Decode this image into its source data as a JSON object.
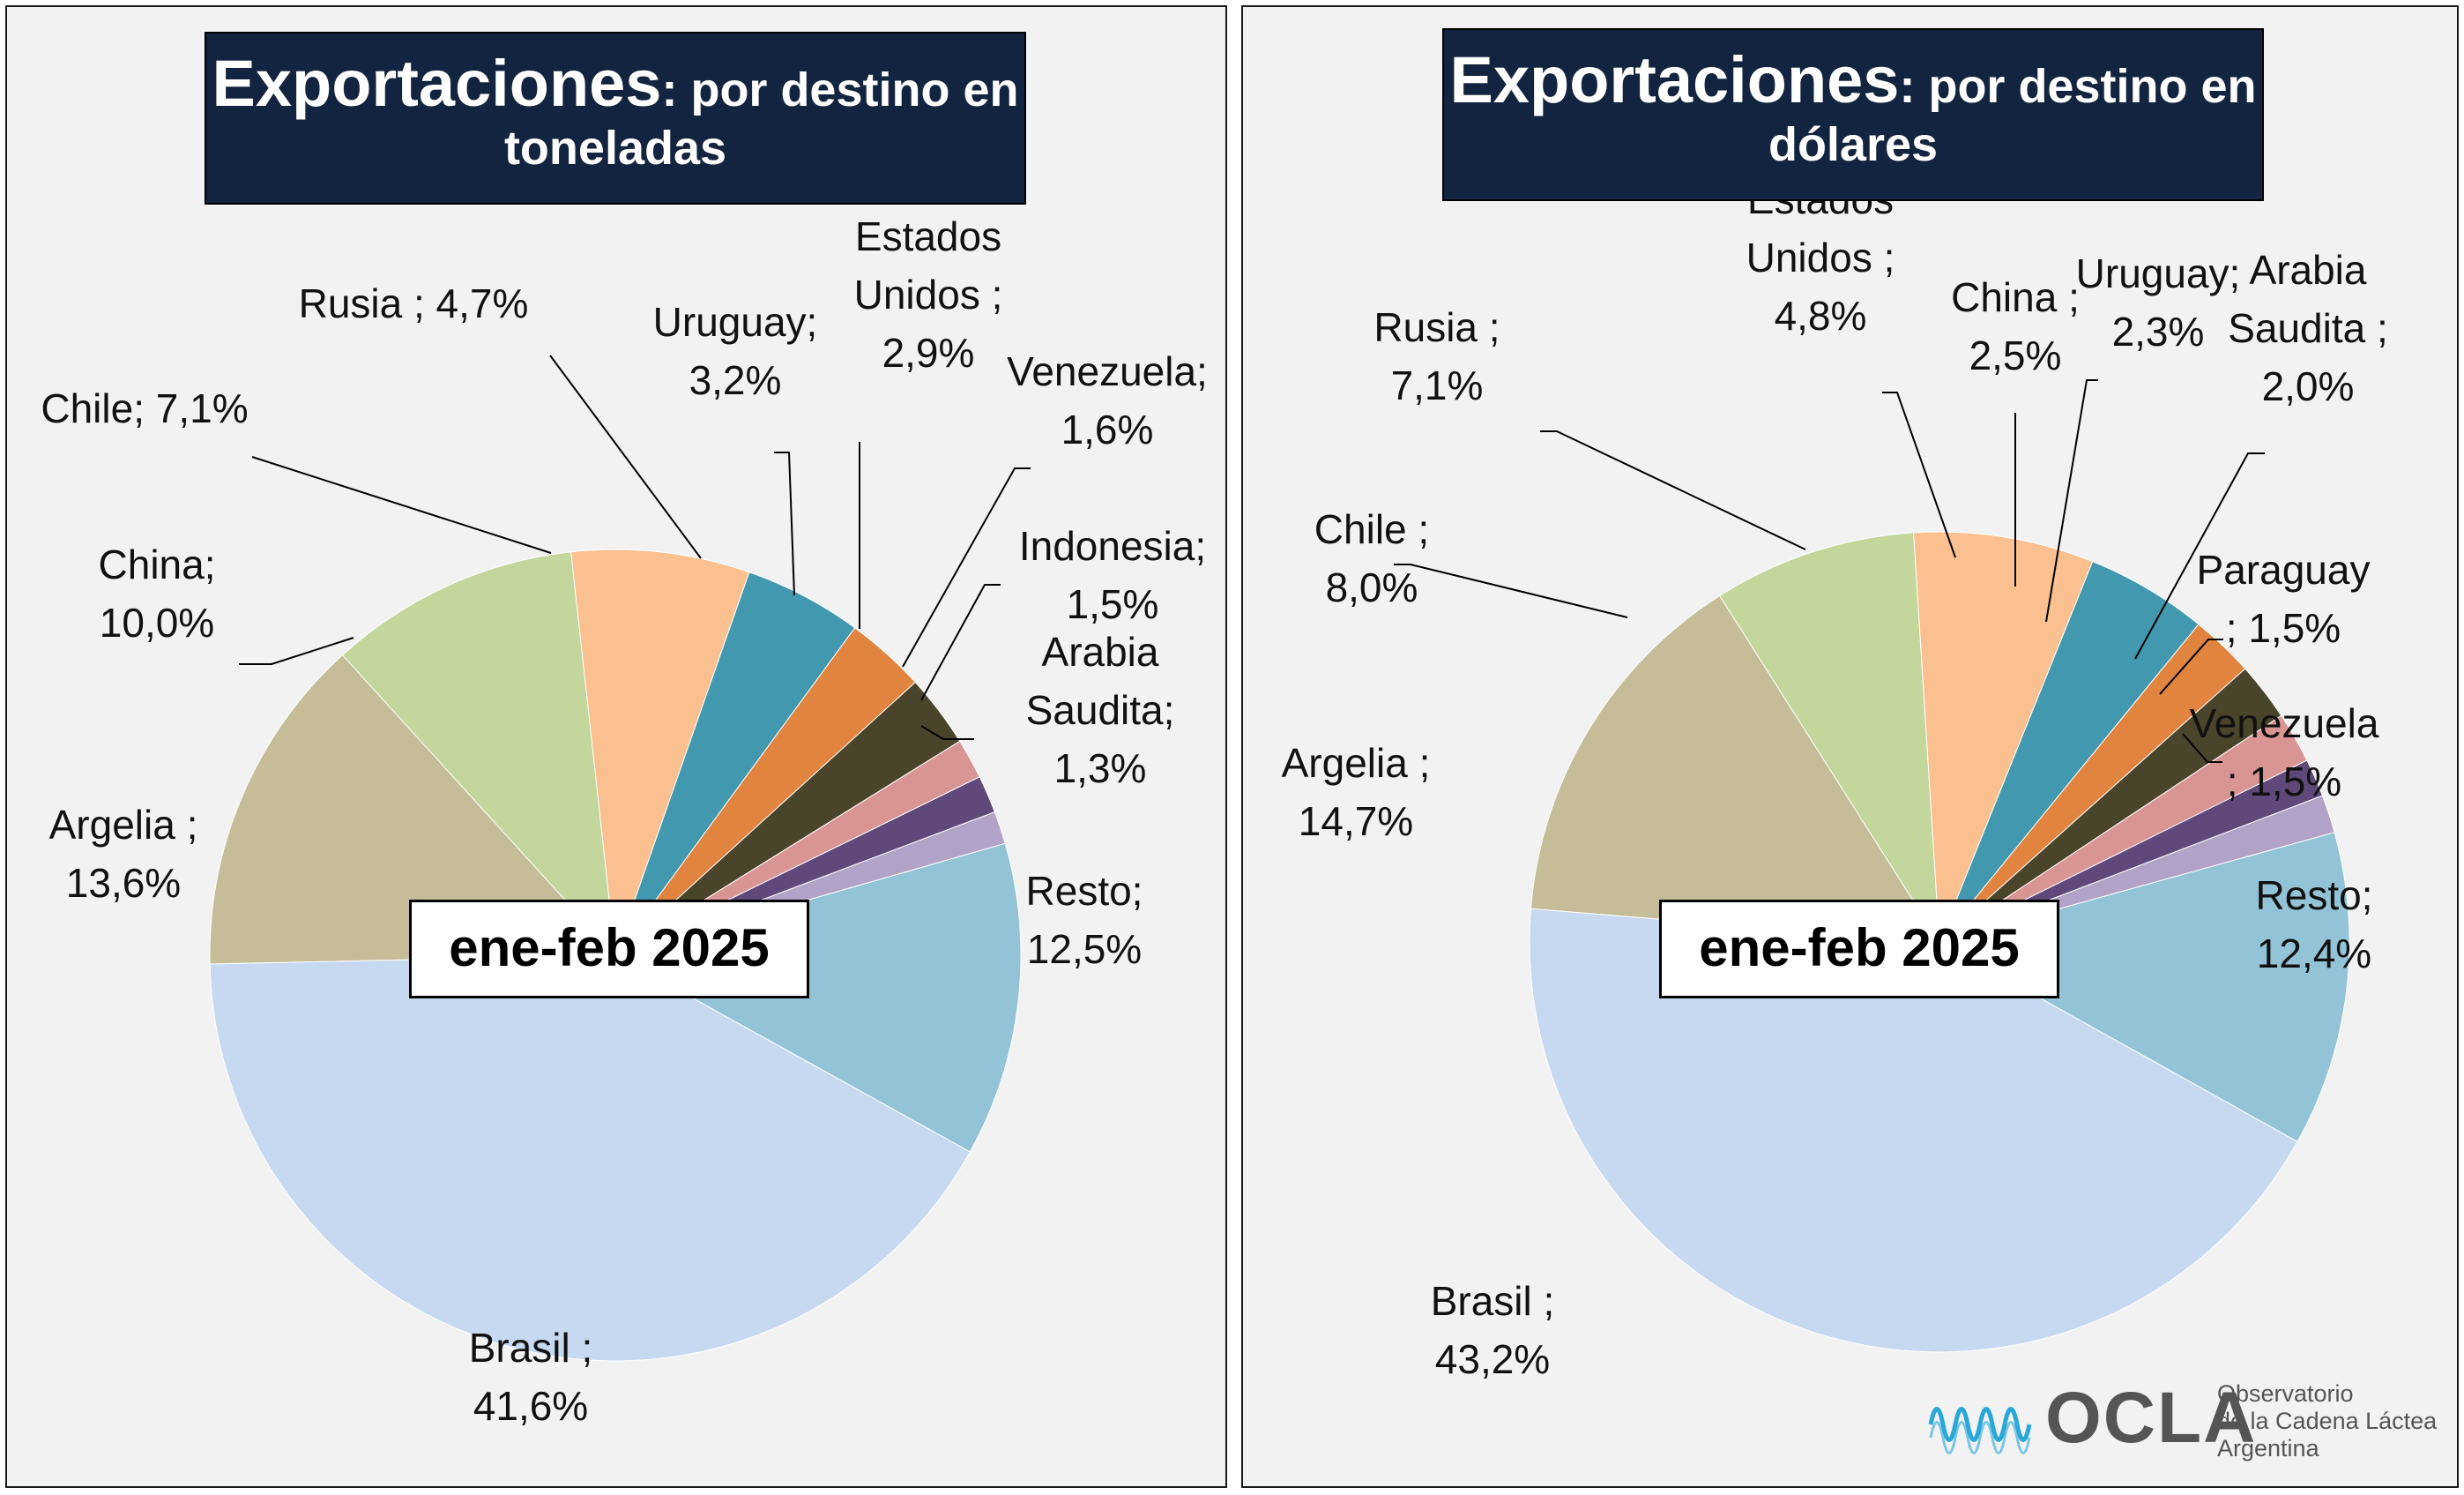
{
  "charts": [
    {
      "title_main": "Exportaciones",
      "title_sub_line1": ": por destino en",
      "title_sub_line2": "toneladas",
      "period": "ene-feb 2025"
    },
    {
      "title_main": "Exportaciones",
      "title_sub_line1": ": por destino en",
      "title_sub_line2": "dólares",
      "period": "ene-feb 2025"
    }
  ],
  "logo": {
    "name": "OCLA",
    "line1": "Observatorio",
    "line2": "de la Cadena Láctea",
    "line3": "Argentina"
  },
  "chart_data": [
    {
      "type": "pie",
      "title": "Exportaciones: por destino en toneladas",
      "slices": [
        {
          "name": "Resto",
          "label_lines": [
            "Resto;",
            "12,5%"
          ],
          "value": 12.5,
          "color": "#93c3d6"
        },
        {
          "name": "Brasil",
          "label_lines": [
            "Brasil ;",
            "41,6%"
          ],
          "value": 41.6,
          "color": "#c6d9f1"
        },
        {
          "name": "Argelia",
          "label_lines": [
            "Argelia ;",
            "13,6%"
          ],
          "value": 13.6,
          "color": "#c4bd97"
        },
        {
          "name": "China",
          "label_lines": [
            "China;",
            "10,0%"
          ],
          "value": 10.0,
          "color": "#c3d69b"
        },
        {
          "name": "Chile",
          "label_lines": [
            "Chile; 7,1%"
          ],
          "value": 7.1,
          "color": "#fac090"
        },
        {
          "name": "Rusia",
          "label_lines": [
            "Rusia ; 4,7%"
          ],
          "value": 4.7,
          "color": "#4198af"
        },
        {
          "name": "Uruguay",
          "label_lines": [
            "Uruguay;",
            "3,2%"
          ],
          "value": 3.2,
          "color": "#e0843f"
        },
        {
          "name": "Estados Unidos",
          "label_lines": [
            "Estados",
            "Unidos ;",
            "2,9%"
          ],
          "value": 2.9,
          "color": "#4a452a"
        },
        {
          "name": "Venezuela",
          "label_lines": [
            "Venezuela;",
            "1,6%"
          ],
          "value": 1.6,
          "color": "#d99594"
        },
        {
          "name": "Indonesia",
          "label_lines": [
            "Indonesia;",
            "1,5%"
          ],
          "value": 1.5,
          "color": "#5f497a"
        },
        {
          "name": "Arabia Saudita",
          "label_lines": [
            "Arabia",
            "Saudita;",
            "1,3%"
          ],
          "value": 1.3,
          "color": "#b2a2c7"
        }
      ]
    },
    {
      "type": "pie",
      "title": "Exportaciones: por destino en dólares",
      "slices": [
        {
          "name": "Resto",
          "label_lines": [
            "Resto;",
            "12,4%"
          ],
          "value": 12.4,
          "color": "#93c3d6"
        },
        {
          "name": "Brasil",
          "label_lines": [
            "Brasil ;",
            "43,2%"
          ],
          "value": 43.2,
          "color": "#c6d9f1"
        },
        {
          "name": "Argelia",
          "label_lines": [
            "Argelia ;",
            "14,7%"
          ],
          "value": 14.7,
          "color": "#c4bd97"
        },
        {
          "name": "Chile",
          "label_lines": [
            "Chile ;",
            "8,0%"
          ],
          "value": 8.0,
          "color": "#c3d69b"
        },
        {
          "name": "Rusia",
          "label_lines": [
            "Rusia ;",
            "7,1%"
          ],
          "value": 7.1,
          "color": "#fac090"
        },
        {
          "name": "Estados Unidos",
          "label_lines": [
            "Estados",
            "Unidos ;",
            "4,8%"
          ],
          "value": 4.8,
          "color": "#4198af"
        },
        {
          "name": "China",
          "label_lines": [
            "China ;",
            "2,5%"
          ],
          "value": 2.5,
          "color": "#e0843f"
        },
        {
          "name": "Uruguay",
          "label_lines": [
            "Uruguay;",
            "2,3%"
          ],
          "value": 2.3,
          "color": "#4a452a"
        },
        {
          "name": "Arabia Saudita",
          "label_lines": [
            "Arabia",
            "Saudita ;",
            "2,0%"
          ],
          "value": 2.0,
          "color": "#d99594"
        },
        {
          "name": "Paraguay",
          "label_lines": [
            "Paraguay",
            "; 1,5%"
          ],
          "value": 1.5,
          "color": "#5f497a"
        },
        {
          "name": "Venezuela",
          "label_lines": [
            "Venezuela",
            "; 1,5%"
          ],
          "value": 1.5,
          "color": "#b2a2c7"
        }
      ]
    }
  ]
}
